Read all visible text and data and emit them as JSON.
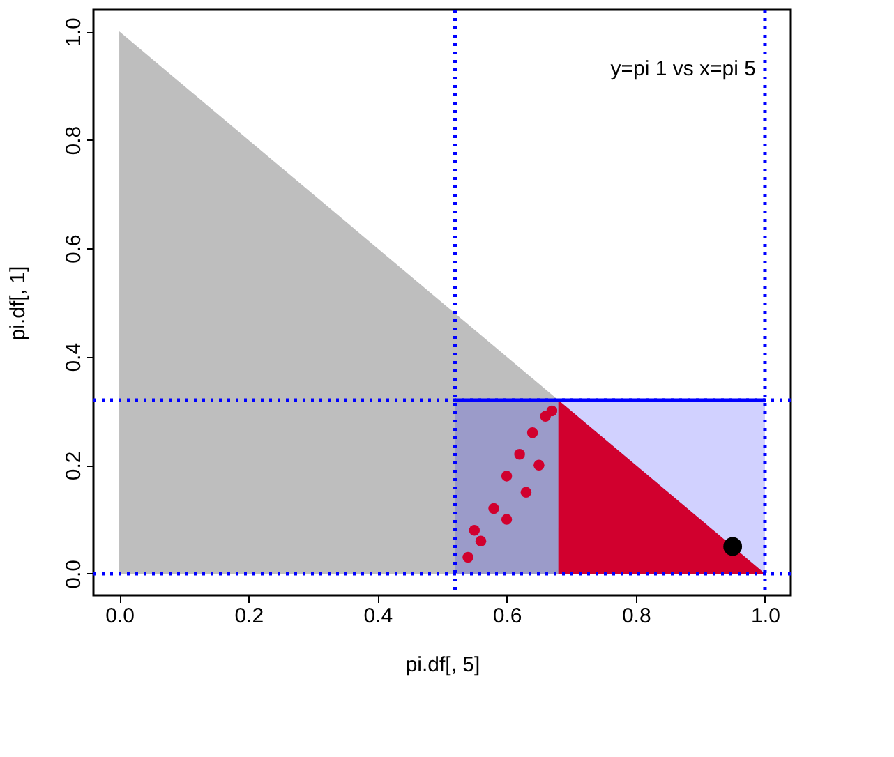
{
  "chart_data": {
    "type": "scatter",
    "xlabel": "pi.df[, 5]",
    "ylabel": "pi.df[, 1]",
    "annotations": [
      "y=pi 1 vs x=pi 5"
    ],
    "xlim": [
      -0.04,
      1.04
    ],
    "xticks": [
      {
        "value": 0,
        "label": "0.0"
      },
      {
        "value": 0.2,
        "label": "0.2"
      },
      {
        "value": 0.4,
        "label": "0.4"
      },
      {
        "value": 0.6,
        "label": "0.6"
      },
      {
        "value": 0.8,
        "label": "0.8"
      },
      {
        "value": 1,
        "label": "1.0"
      }
    ],
    "ylim": [
      -0.04,
      1.04
    ],
    "yticks": [
      {
        "value": 0,
        "label": "0.0"
      },
      {
        "value": 0.2,
        "label": "0.2"
      },
      {
        "value": 0.4,
        "label": "0.4"
      },
      {
        "value": 0.6,
        "label": "0.6"
      },
      {
        "value": 0.8,
        "label": "0.8"
      },
      {
        "value": 1,
        "label": "1.0"
      }
    ],
    "series": [
      {
        "type": "area",
        "color": "#bebebe",
        "x": [
          0,
          1
        ],
        "values": [
          1,
          0
        ]
      },
      {
        "type": "area",
        "color": "#ff0000",
        "x": [
          0.68,
          1
        ],
        "values": [
          0.32,
          0
        ]
      },
      {
        "marker": "circle",
        "color": "#ff0000",
        "x": [
          0.54,
          0.55,
          0.56,
          0.58,
          0.6,
          0.6,
          0.62,
          0.63,
          0.64,
          0.65,
          0.66,
          0.67
        ],
        "values": [
          0.03,
          0.08,
          0.06,
          0.12,
          0.1,
          0.18,
          0.22,
          0.15,
          0.26,
          0.2,
          0.29,
          0.3
        ]
      },
      {
        "type": "area",
        "color": "#0000ff",
        "line_style": "solid",
        "x": [
          0.52,
          1
        ],
        "values": [
          0.32,
          0.32
        ]
      },
      {
        "marker": "circle",
        "color": "#000000",
        "x": [
          0.95
        ],
        "values": [
          0.05
        ]
      }
    ],
    "ref_lines": [
      {
        "axis": "x",
        "value": 0.52,
        "color": "#0000ff",
        "line_style": "dotted"
      },
      {
        "axis": "x",
        "value": 1,
        "color": "#0000ff",
        "line_style": "dotted"
      },
      {
        "axis": "y",
        "value": 0.32,
        "color": "#0000ff",
        "line_style": "dotted"
      },
      {
        "axis": "y",
        "value": 0,
        "color": "#0000ff",
        "line_style": "dotted"
      }
    ]
  }
}
